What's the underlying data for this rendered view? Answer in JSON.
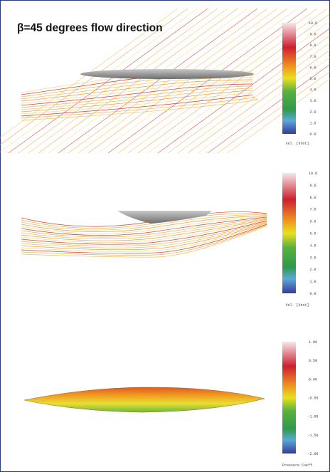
{
  "title": "β=45 degrees flow direction",
  "panels": [
    {
      "colorbar": {
        "labels": [
          "10.0",
          "9.0",
          "8.0",
          "7.0",
          "6.0",
          "5.0",
          "4.0",
          "3.0",
          "2.0",
          "1.0",
          "0.0"
        ],
        "caption": "Vel. [knot]"
      }
    },
    {
      "colorbar": {
        "labels": [
          "10.0",
          "9.0",
          "8.0",
          "7.0",
          "6.0",
          "5.0",
          "4.0",
          "3.0",
          "2.0",
          "1.0",
          "0.0"
        ],
        "caption": "Vel. [knot]"
      }
    },
    {
      "colorbar": {
        "labels": [
          "1.00",
          "0.50",
          "0.00",
          "-0.50",
          "-1.00",
          "-1.50",
          "-2.00"
        ],
        "caption": "Pressure Coeff"
      }
    }
  ]
}
